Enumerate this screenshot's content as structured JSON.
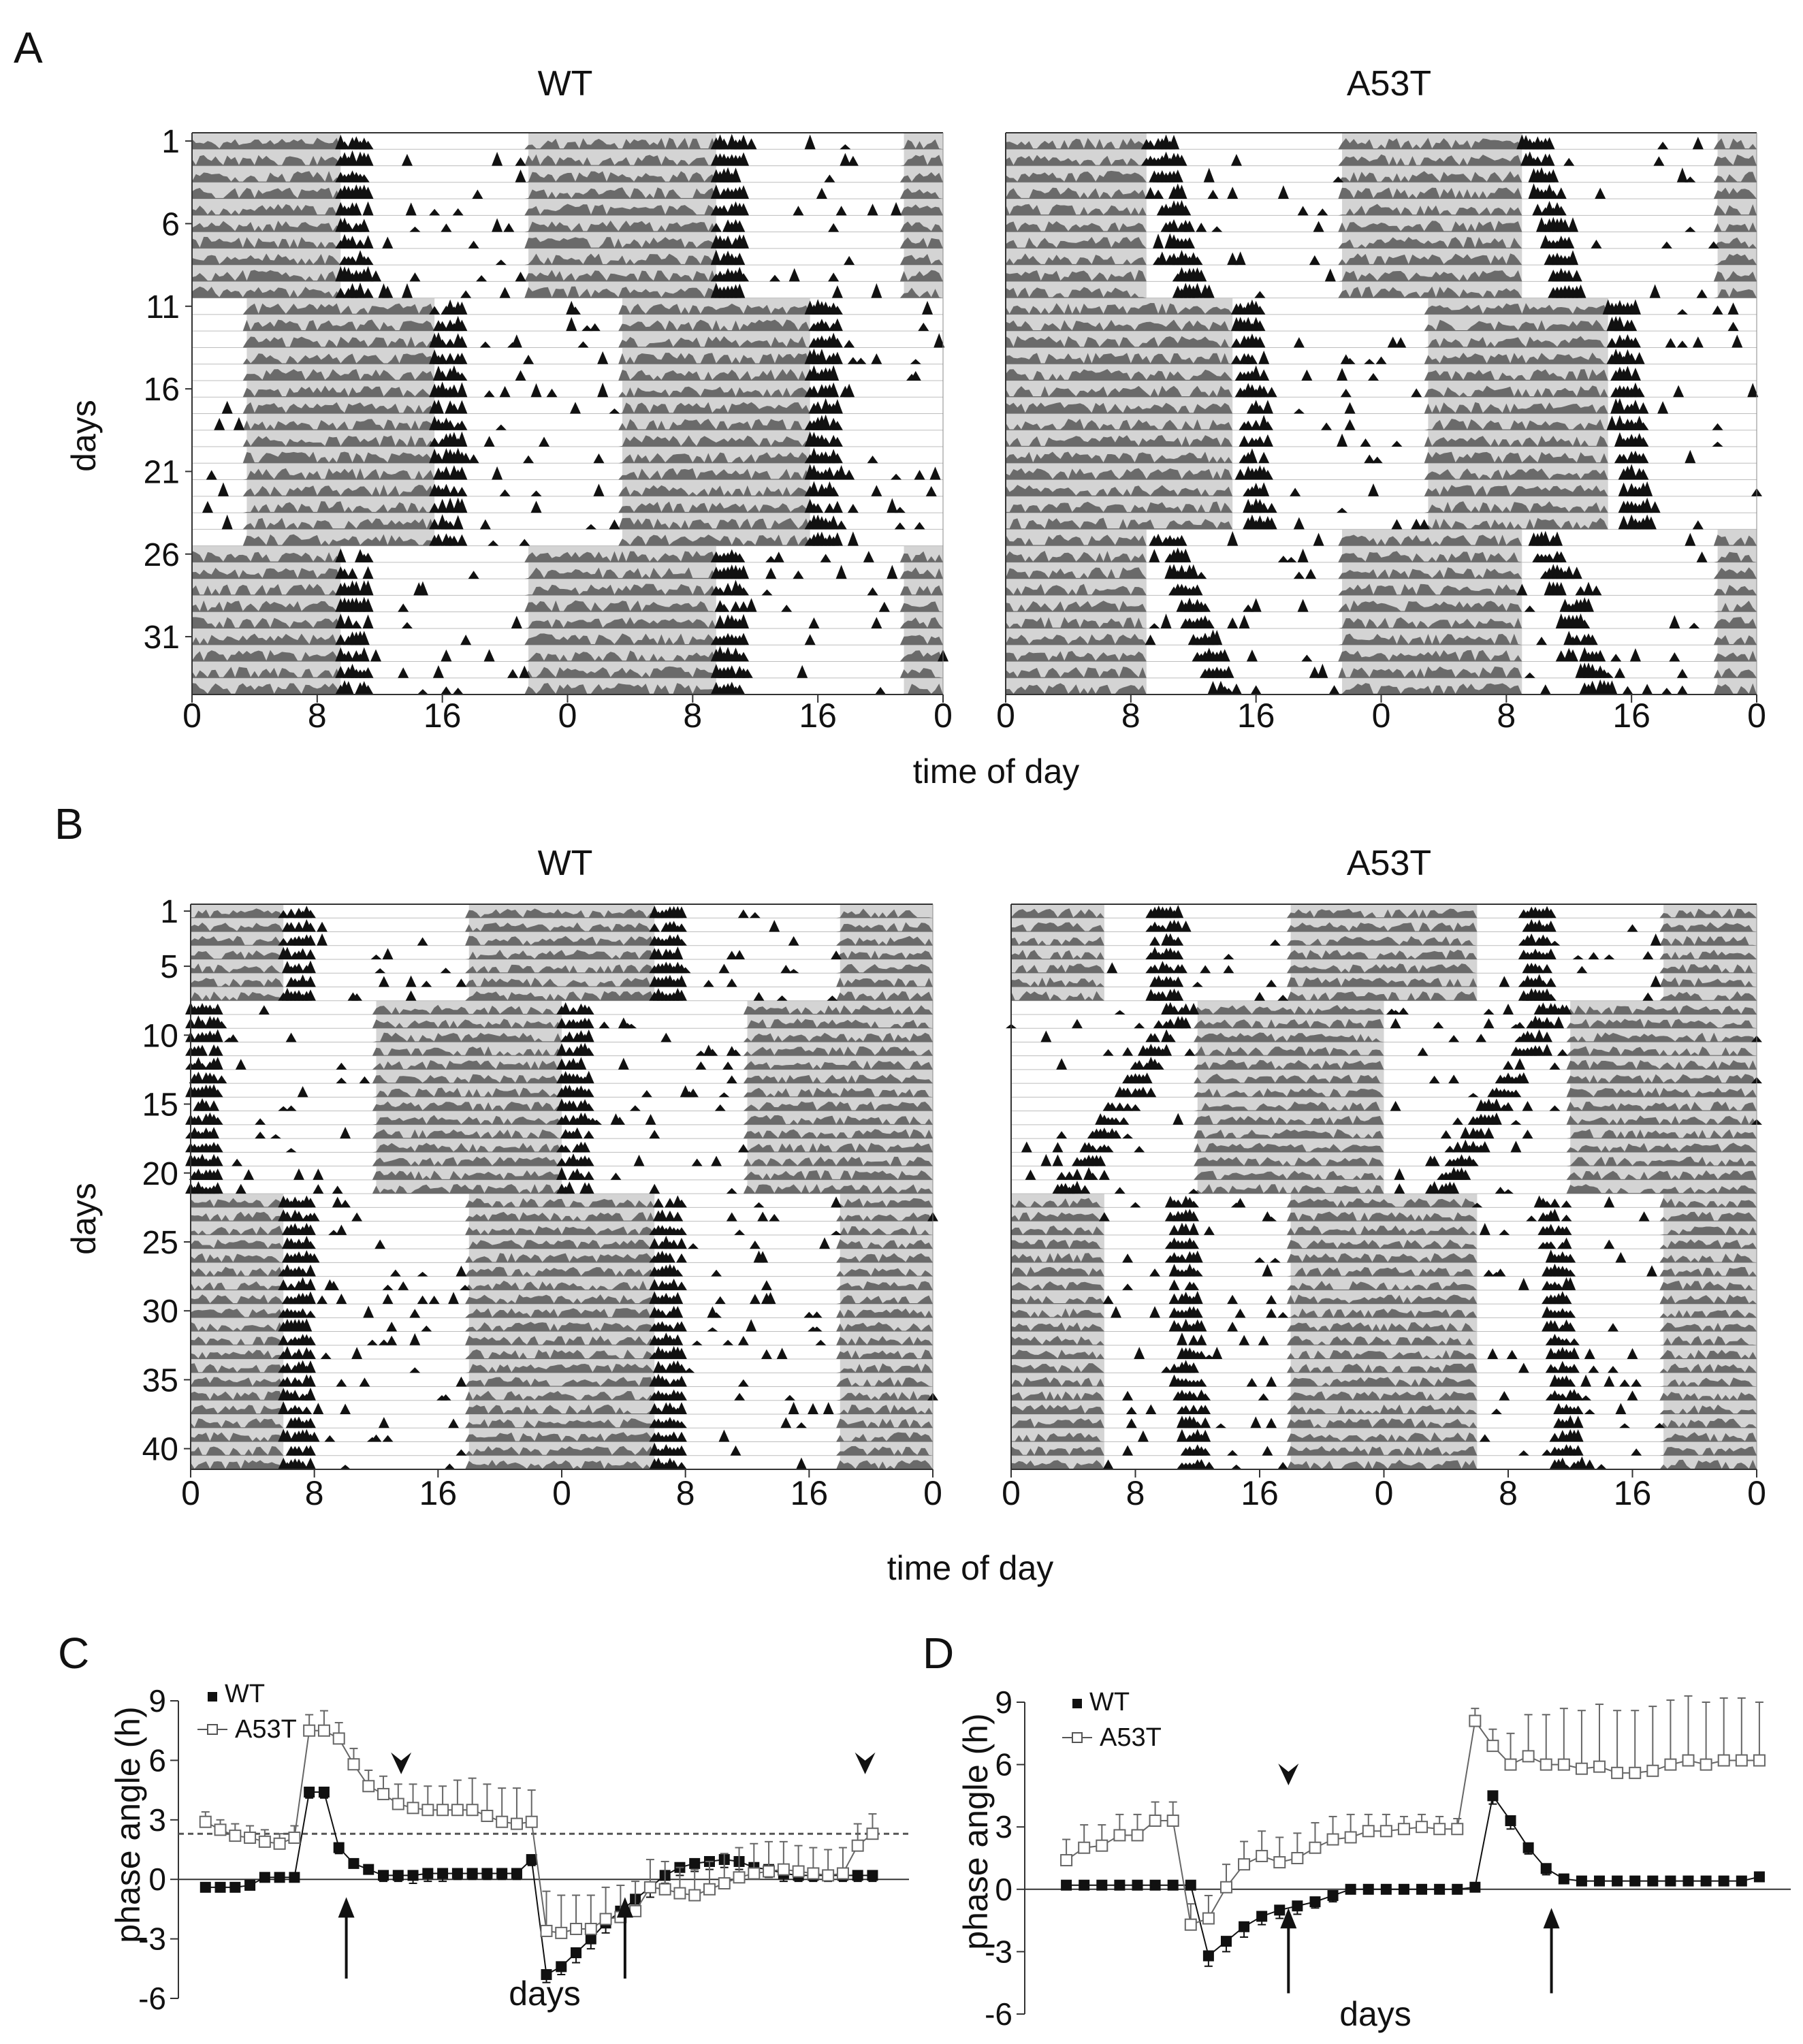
{
  "panels": {
    "A": {
      "letter": "A"
    },
    "B": {
      "letter": "B"
    },
    "C": {
      "letter": "C"
    },
    "D": {
      "letter": "D"
    }
  },
  "colors": {
    "light": "#d4d4d4",
    "activity_dark": "#111111",
    "activity_gray": "#6a6a6a",
    "axis": "#333333",
    "dashed": "#555555"
  },
  "chart_data": [
    {
      "id": "A-WT",
      "type": "actogram",
      "panel": "A",
      "title": "WT",
      "n_days": 34,
      "x_ticks": [
        "0",
        "8",
        "16",
        "0",
        "8",
        "16",
        "0"
      ],
      "y_ticks": [
        {
          "day": 1,
          "label": "1"
        },
        {
          "day": 6,
          "label": "6"
        },
        {
          "day": 11,
          "label": "11"
        },
        {
          "day": 16,
          "label": "16"
        },
        {
          "day": 21,
          "label": "21"
        },
        {
          "day": 26,
          "label": "26"
        },
        {
          "day": 31,
          "label": "31"
        }
      ],
      "ylabel": "days",
      "light_bands": [
        {
          "from_day": 1,
          "to_day": 10,
          "h0": 0,
          "h1": 9.5
        },
        {
          "from_day": 1,
          "to_day": 10,
          "h0": 21.5,
          "h1": 33.5
        },
        {
          "from_day": 1,
          "to_day": 10,
          "h0": 45.5,
          "h1": 48
        },
        {
          "from_day": 11,
          "to_day": 25,
          "h0": 3.5,
          "h1": 15.5
        },
        {
          "from_day": 11,
          "to_day": 25,
          "h0": 27.5,
          "h1": 39.5
        },
        {
          "from_day": 26,
          "to_day": 34,
          "h0": 0,
          "h1": 9.5
        },
        {
          "from_day": 26,
          "to_day": 34,
          "h0": 21.5,
          "h1": 33.5
        },
        {
          "from_day": 26,
          "to_day": 34,
          "h0": 45.5,
          "h1": 48
        }
      ],
      "onsets": [
        {
          "from_day": 1,
          "to_day": 10,
          "h0": 9.5,
          "h1": 9.5
        },
        {
          "from_day": 11,
          "to_day": 25,
          "h0": 15.5,
          "h1": 15.5
        },
        {
          "from_day": 26,
          "to_day": 34,
          "h0": 9.5,
          "h1": 9.5
        }
      ]
    },
    {
      "id": "A-A53T",
      "type": "actogram",
      "panel": "A",
      "title": "A53T",
      "n_days": 34,
      "x_ticks": [
        "0",
        "8",
        "16",
        "0",
        "8",
        "16",
        "0"
      ],
      "y_ticks": [],
      "light_bands": [
        {
          "from_day": 1,
          "to_day": 10,
          "h0": 0,
          "h1": 9
        },
        {
          "from_day": 1,
          "to_day": 10,
          "h0": 21.5,
          "h1": 33
        },
        {
          "from_day": 1,
          "to_day": 10,
          "h0": 45.5,
          "h1": 48
        },
        {
          "from_day": 11,
          "to_day": 24,
          "h0": 0,
          "h1": 14.5
        },
        {
          "from_day": 11,
          "to_day": 24,
          "h0": 27,
          "h1": 38.5
        },
        {
          "from_day": 25,
          "to_day": 34,
          "h0": 0,
          "h1": 9
        },
        {
          "from_day": 25,
          "to_day": 34,
          "h0": 21.5,
          "h1": 33
        },
        {
          "from_day": 25,
          "to_day": 34,
          "h0": 45.5,
          "h1": 48
        }
      ],
      "onsets": [
        {
          "from_day": 1,
          "to_day": 10,
          "h0": 9,
          "h1": 11
        },
        {
          "from_day": 11,
          "to_day": 24,
          "h0": 14.5,
          "h1": 15.5
        },
        {
          "from_day": 25,
          "to_day": 34,
          "h0": 9.5,
          "h1": 13
        }
      ]
    },
    {
      "id": "B-WT",
      "type": "actogram",
      "panel": "B",
      "title": "WT",
      "n_days": 41,
      "x_ticks": [
        "0",
        "8",
        "16",
        "0",
        "8",
        "16",
        "0"
      ],
      "y_ticks": [
        {
          "day": 1,
          "label": "1"
        },
        {
          "day": 5,
          "label": "5"
        },
        {
          "day": 10,
          "label": "10"
        },
        {
          "day": 15,
          "label": "15"
        },
        {
          "day": 20,
          "label": "20"
        },
        {
          "day": 25,
          "label": "25"
        },
        {
          "day": 30,
          "label": "30"
        },
        {
          "day": 35,
          "label": "35"
        },
        {
          "day": 40,
          "label": "40"
        }
      ],
      "ylabel": "days",
      "light_bands": [
        {
          "from_day": 1,
          "to_day": 7,
          "h0": 0,
          "h1": 6
        },
        {
          "from_day": 1,
          "to_day": 7,
          "h0": 18,
          "h1": 30
        },
        {
          "from_day": 1,
          "to_day": 7,
          "h0": 42,
          "h1": 48
        },
        {
          "from_day": 8,
          "to_day": 21,
          "h0": 12,
          "h1": 24
        },
        {
          "from_day": 8,
          "to_day": 21,
          "h0": 36,
          "h1": 48
        },
        {
          "from_day": 22,
          "to_day": 41,
          "h0": 0,
          "h1": 6
        },
        {
          "from_day": 22,
          "to_day": 41,
          "h0": 18,
          "h1": 30
        },
        {
          "from_day": 22,
          "to_day": 41,
          "h0": 42,
          "h1": 48
        }
      ],
      "onsets": [
        {
          "from_day": 1,
          "to_day": 7,
          "h0": 6,
          "h1": 6
        },
        {
          "from_day": 8,
          "to_day": 21,
          "h0": 0,
          "h1": 0
        },
        {
          "from_day": 22,
          "to_day": 41,
          "h0": 6,
          "h1": 6
        }
      ]
    },
    {
      "id": "B-A53T",
      "type": "actogram",
      "panel": "B",
      "title": "A53T",
      "n_days": 41,
      "x_ticks": [
        "0",
        "8",
        "16",
        "0",
        "8",
        "16",
        "0"
      ],
      "y_ticks": [],
      "light_bands": [
        {
          "from_day": 1,
          "to_day": 7,
          "h0": 0,
          "h1": 6
        },
        {
          "from_day": 1,
          "to_day": 7,
          "h0": 18,
          "h1": 30
        },
        {
          "from_day": 1,
          "to_day": 7,
          "h0": 42,
          "h1": 48
        },
        {
          "from_day": 8,
          "to_day": 21,
          "h0": 12,
          "h1": 24
        },
        {
          "from_day": 8,
          "to_day": 21,
          "h0": 36,
          "h1": 48
        },
        {
          "from_day": 22,
          "to_day": 41,
          "h0": 0,
          "h1": 6
        },
        {
          "from_day": 22,
          "to_day": 41,
          "h0": 18,
          "h1": 30
        },
        {
          "from_day": 22,
          "to_day": 41,
          "h0": 42,
          "h1": 48
        }
      ],
      "onsets": [
        {
          "from_day": 1,
          "to_day": 7,
          "h0": 9,
          "h1": 9
        },
        {
          "from_day": 8,
          "to_day": 21,
          "h0": 10,
          "h1": 3
        },
        {
          "from_day": 22,
          "to_day": 41,
          "h0": 10,
          "h1": 11
        }
      ]
    },
    {
      "id": "C",
      "type": "line",
      "panel": "C",
      "xlabel": "days",
      "ylabel": "phase angle (h)",
      "ylim": [
        -6,
        9
      ],
      "yticks": [
        9,
        6,
        3,
        0,
        -3,
        -6
      ],
      "xlim": [
        0,
        48
      ],
      "reference_line": 2.3,
      "series": [
        {
          "name": "WT",
          "marker": "filled-square",
          "x": [
            1,
            2,
            3,
            4,
            5,
            6,
            7,
            8,
            9,
            10,
            11,
            12,
            13,
            14,
            15,
            16,
            17,
            18,
            19,
            20,
            21,
            22,
            23,
            24,
            25,
            26,
            27,
            28,
            29,
            30,
            31,
            32,
            33,
            34,
            35,
            36,
            37,
            38,
            39,
            40,
            41,
            42,
            43,
            44,
            45,
            46
          ],
          "values": [
            -0.4,
            -0.4,
            -0.4,
            -0.3,
            0.1,
            0.1,
            0.1,
            4.4,
            4.4,
            1.6,
            0.8,
            0.5,
            0.2,
            0.2,
            0.2,
            0.3,
            0.3,
            0.3,
            0.3,
            0.3,
            0.3,
            0.3,
            1.0,
            -4.8,
            -4.4,
            -3.7,
            -3.0,
            -2.2,
            -1.6,
            -1.0,
            -0.4,
            0.2,
            0.6,
            0.8,
            0.9,
            1.0,
            0.9,
            0.6,
            0.5,
            0.3,
            0.2,
            0.2,
            0.2,
            0.2,
            0.2,
            0.2
          ],
          "errors": [
            0.2,
            0.2,
            0.2,
            0.2,
            0.2,
            0.2,
            0.2,
            0.3,
            0.3,
            0.3,
            0.2,
            0.2,
            0.3,
            0.3,
            0.4,
            0.4,
            0.4,
            0.3,
            0.3,
            0.3,
            0.3,
            0.3,
            0.3,
            0.4,
            0.4,
            0.5,
            0.5,
            0.5,
            0.5,
            0.5,
            0.5,
            0.4,
            0.4,
            0.4,
            0.4,
            0.4,
            0.4,
            0.4,
            0.4,
            0.4,
            0.3,
            0.3,
            0.3,
            0.3,
            0.3,
            0.3
          ]
        },
        {
          "name": "A53T",
          "marker": "open-square",
          "x": [
            1,
            2,
            3,
            4,
            5,
            6,
            7,
            8,
            9,
            10,
            11,
            12,
            13,
            14,
            15,
            16,
            17,
            18,
            19,
            20,
            21,
            22,
            23,
            24,
            25,
            26,
            27,
            28,
            29,
            30,
            31,
            32,
            33,
            34,
            35,
            36,
            37,
            38,
            39,
            40,
            41,
            42,
            43,
            44,
            45,
            46
          ],
          "values": [
            2.9,
            2.5,
            2.2,
            2.1,
            1.9,
            1.8,
            2.1,
            7.5,
            7.5,
            7.1,
            5.8,
            4.7,
            4.3,
            3.8,
            3.6,
            3.5,
            3.5,
            3.5,
            3.5,
            3.2,
            2.9,
            2.8,
            2.9,
            -2.6,
            -2.7,
            -2.5,
            -2.5,
            -2.0,
            -1.9,
            -1.6,
            -0.4,
            -0.5,
            -0.7,
            -0.8,
            -0.5,
            -0.2,
            0.1,
            0.3,
            0.4,
            0.5,
            0.4,
            0.3,
            0.2,
            0.3,
            1.7,
            2.3
          ],
          "errors": [
            0.5,
            0.5,
            0.6,
            0.6,
            0.6,
            0.5,
            0.6,
            0.8,
            1.0,
            0.8,
            0.8,
            0.8,
            0.9,
            1.0,
            1.2,
            1.2,
            1.2,
            1.5,
            1.6,
            1.6,
            1.7,
            1.8,
            1.6,
            2.0,
            1.9,
            1.7,
            1.7,
            1.6,
            1.6,
            1.5,
            1.4,
            1.4,
            1.3,
            1.3,
            1.4,
            1.5,
            1.5,
            1.5,
            1.5,
            1.4,
            1.3,
            1.3,
            1.3,
            1.3,
            1.1,
            1.0
          ]
        }
      ],
      "arrows": [
        {
          "x": 10.5
        },
        {
          "x": 29.3
        }
      ],
      "arrowheads": [
        {
          "x": 14.2
        },
        {
          "x": 45.5
        }
      ]
    },
    {
      "id": "D",
      "type": "line",
      "panel": "D",
      "xlabel": "days",
      "ylabel": "phase angle (h)",
      "ylim": [
        -6,
        9
      ],
      "yticks": [
        9,
        6,
        3,
        0,
        -3,
        -6
      ],
      "xlim": [
        0,
        41
      ],
      "series": [
        {
          "name": "WT",
          "marker": "filled-square",
          "x": [
            1,
            2,
            3,
            4,
            5,
            6,
            7,
            8,
            9,
            10,
            11,
            12,
            13,
            14,
            15,
            16,
            17,
            18,
            19,
            20,
            21,
            22,
            23,
            24,
            25,
            26,
            27,
            28,
            29,
            30,
            31,
            32,
            33,
            34,
            35,
            36,
            37,
            38,
            39,
            40
          ],
          "values": [
            0.2,
            0.2,
            0.2,
            0.2,
            0.2,
            0.2,
            0.2,
            0.2,
            -3.2,
            -2.5,
            -1.8,
            -1.3,
            -1.0,
            -0.8,
            -0.6,
            -0.3,
            0.0,
            0.0,
            0.0,
            0.0,
            0.0,
            0.0,
            0.0,
            0.1,
            4.5,
            3.3,
            2.0,
            1.0,
            0.5,
            0.4,
            0.4,
            0.4,
            0.4,
            0.4,
            0.4,
            0.4,
            0.4,
            0.4,
            0.4,
            0.6
          ],
          "errors": [
            0.2,
            0.2,
            0.2,
            0.2,
            0.2,
            0.2,
            0.2,
            0.2,
            0.5,
            0.5,
            0.5,
            0.4,
            0.4,
            0.4,
            0.3,
            0.3,
            0.2,
            0.2,
            0.2,
            0.2,
            0.2,
            0.2,
            0.2,
            0.2,
            0.4,
            0.4,
            0.3,
            0.3,
            0.2,
            0.2,
            0.2,
            0.2,
            0.2,
            0.2,
            0.2,
            0.2,
            0.2,
            0.2,
            0.2,
            0.2
          ]
        },
        {
          "name": "A53T",
          "marker": "open-square",
          "x": [
            1,
            2,
            3,
            4,
            5,
            6,
            7,
            8,
            9,
            10,
            11,
            12,
            13,
            14,
            15,
            16,
            17,
            18,
            19,
            20,
            21,
            22,
            23,
            24,
            25,
            26,
            27,
            28,
            29,
            30,
            31,
            32,
            33,
            34,
            35,
            36,
            37,
            38,
            39,
            40
          ],
          "values": [
            1.4,
            2.0,
            2.1,
            2.6,
            2.6,
            3.3,
            3.3,
            -1.7,
            -1.4,
            0.1,
            1.2,
            1.6,
            1.3,
            1.5,
            2.0,
            2.4,
            2.5,
            2.8,
            2.8,
            2.9,
            3.0,
            2.9,
            2.9,
            8.1,
            6.9,
            6.0,
            6.4,
            6.0,
            6.0,
            5.8,
            5.9,
            5.6,
            5.6,
            5.7,
            6.0,
            6.2,
            6.0,
            6.2,
            6.2,
            6.2
          ],
          "errors": [
            1.0,
            1.1,
            1.0,
            1.0,
            1.0,
            0.9,
            0.9,
            1.0,
            1.1,
            1.1,
            1.1,
            1.2,
            1.2,
            1.2,
            1.2,
            1.1,
            1.1,
            0.8,
            0.8,
            0.6,
            0.6,
            0.6,
            0.5,
            0.6,
            0.8,
            1.5,
            2.0,
            2.4,
            2.7,
            2.8,
            3.0,
            3.0,
            3.0,
            3.1,
            3.1,
            3.1,
            3.0,
            3.0,
            3.0,
            2.8
          ]
        }
      ],
      "arrows": [
        {
          "x": 13.5
        },
        {
          "x": 28.3
        }
      ],
      "arrowheads": [
        {
          "x": 13.5
        }
      ]
    }
  ],
  "labels": {
    "time_of_day": "time of day",
    "days": "days",
    "phase_angle": "phase angle (h)",
    "legend_wt": "WT",
    "legend_a53t": "A53T"
  }
}
